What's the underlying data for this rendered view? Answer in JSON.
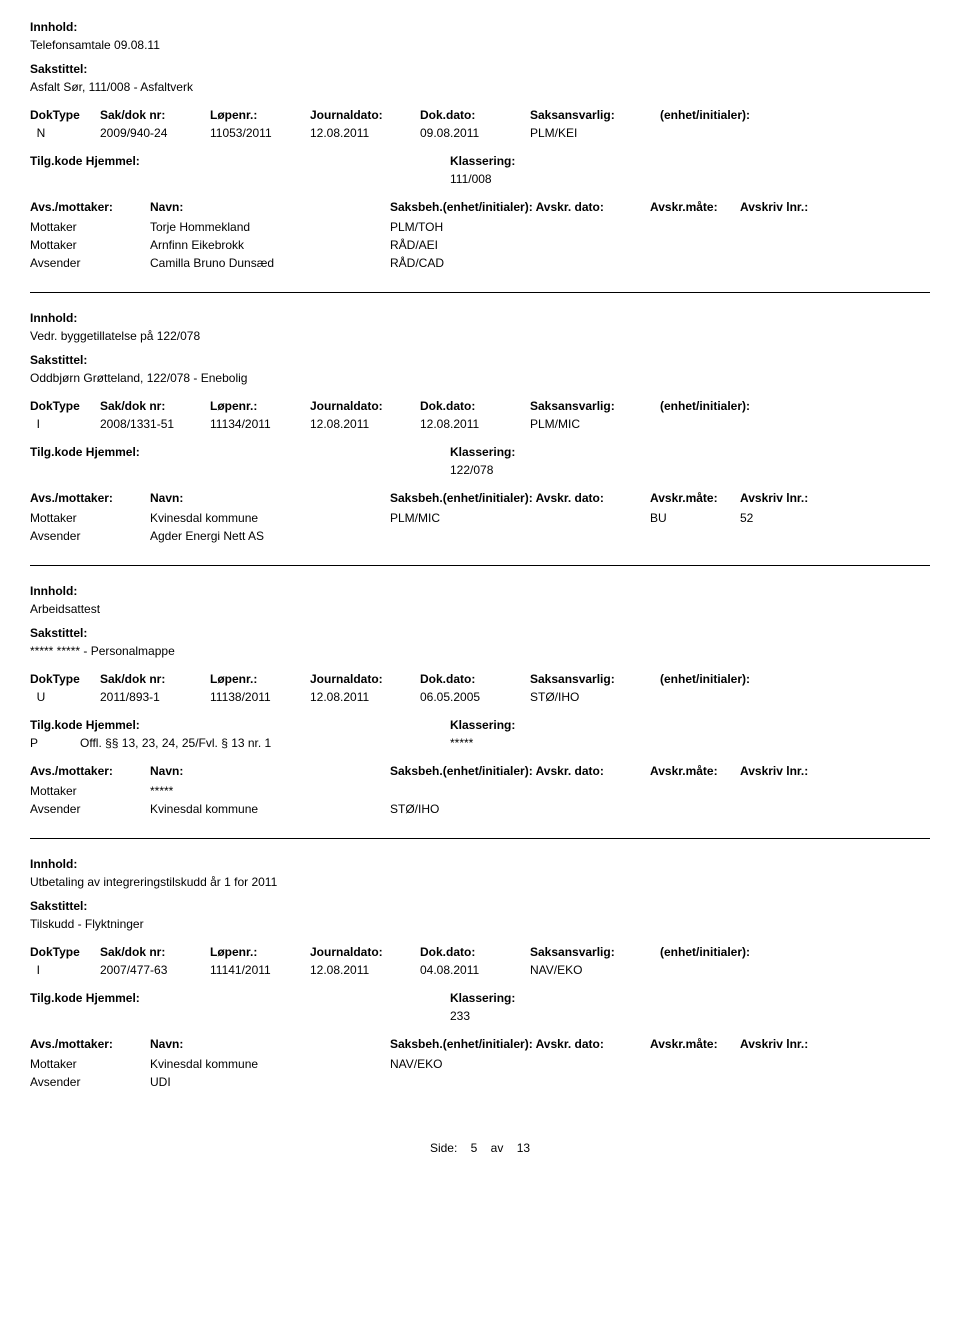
{
  "labels": {
    "innhold": "Innhold:",
    "sakstittel": "Sakstittel:",
    "doktype": "DokType",
    "sakdok": "Sak/dok nr:",
    "lopenr": "Løpenr.:",
    "journaldato": "Journaldato:",
    "dokdato": "Dok.dato:",
    "saksansvarlig": "Saksansvarlig:",
    "enhet": "(enhet/initialer):",
    "tilgkode": "Tilg.kode",
    "hjemmel": "Hjemmel:",
    "klassering": "Klassering:",
    "avsmottaker": "Avs./mottaker:",
    "navn": "Navn:",
    "saksbeh": "Saksbeh.(enhet/initialer):",
    "avskrdato": "Avskr. dato:",
    "avskrmate": "Avskr.måte:",
    "avskrivlnr": "Avskriv lnr.:",
    "mottaker": "Mottaker",
    "avsender": "Avsender"
  },
  "entries": [
    {
      "innhold": "Telefonsamtale 09.08.11",
      "sakstittel": "Asfalt Sør, 111/008 - Asfaltverk",
      "doktype": "N",
      "sakdok": "2009/940-24",
      "lopenr": "11053/2011",
      "journaldato": "12.08.2011",
      "dokdato": "09.08.2011",
      "saksansvarlig": "PLM/KEI",
      "tilgcode": "",
      "hjemmel": "",
      "klassering": "111/008",
      "parties": [
        {
          "role": "Mottaker",
          "name": "Torje Hommekland",
          "saksbeh": "PLM/TOH",
          "avskrmate": "",
          "avskrlnr": ""
        },
        {
          "role": "Mottaker",
          "name": "Arnfinn Eikebrokk",
          "saksbeh": "RÅD/AEI",
          "avskrmate": "",
          "avskrlnr": ""
        },
        {
          "role": "Avsender",
          "name": "Camilla Bruno Dunsæd",
          "saksbeh": "RÅD/CAD",
          "avskrmate": "",
          "avskrlnr": ""
        }
      ]
    },
    {
      "innhold": "Vedr. byggetillatelse på 122/078",
      "sakstittel": "Oddbjørn Grøtteland, 122/078 - Enebolig",
      "doktype": "I",
      "sakdok": "2008/1331-51",
      "lopenr": "11134/2011",
      "journaldato": "12.08.2011",
      "dokdato": "12.08.2011",
      "saksansvarlig": "PLM/MIC",
      "tilgcode": "",
      "hjemmel": "",
      "klassering": "122/078",
      "parties": [
        {
          "role": "Mottaker",
          "name": "Kvinesdal kommune",
          "saksbeh": "PLM/MIC",
          "avskrmate": "BU",
          "avskrlnr": "52"
        },
        {
          "role": "Avsender",
          "name": "Agder Energi Nett AS",
          "saksbeh": "",
          "avskrmate": "",
          "avskrlnr": ""
        }
      ]
    },
    {
      "innhold": "Arbeidsattest",
      "sakstittel": "***** ***** - Personalmappe",
      "doktype": "U",
      "sakdok": "2011/893-1",
      "lopenr": "11138/2011",
      "journaldato": "12.08.2011",
      "dokdato": "06.05.2005",
      "saksansvarlig": "STØ/IHO",
      "tilgcode": "P",
      "hjemmel": "Offl. §§ 13, 23, 24, 25/Fvl. § 13 nr. 1",
      "klassering": "*****",
      "parties": [
        {
          "role": "Mottaker",
          "name": "*****",
          "saksbeh": "",
          "avskrmate": "",
          "avskrlnr": ""
        },
        {
          "role": "Avsender",
          "name": "Kvinesdal kommune",
          "saksbeh": "STØ/IHO",
          "avskrmate": "",
          "avskrlnr": ""
        }
      ]
    },
    {
      "innhold": "Utbetaling av integreringstilskudd år 1 for 2011",
      "sakstittel": "Tilskudd - Flyktninger",
      "doktype": "I",
      "sakdok": "2007/477-63",
      "lopenr": "11141/2011",
      "journaldato": "12.08.2011",
      "dokdato": "04.08.2011",
      "saksansvarlig": "NAV/EKO",
      "tilgcode": "",
      "hjemmel": "",
      "klassering": "233",
      "parties": [
        {
          "role": "Mottaker",
          "name": "Kvinesdal kommune",
          "saksbeh": "NAV/EKO",
          "avskrmate": "",
          "avskrlnr": ""
        },
        {
          "role": "Avsender",
          "name": "UDI",
          "saksbeh": "",
          "avskrmate": "",
          "avskrlnr": ""
        }
      ]
    }
  ],
  "footer": {
    "side": "Side:",
    "page": "5",
    "av": "av",
    "total": "13"
  }
}
